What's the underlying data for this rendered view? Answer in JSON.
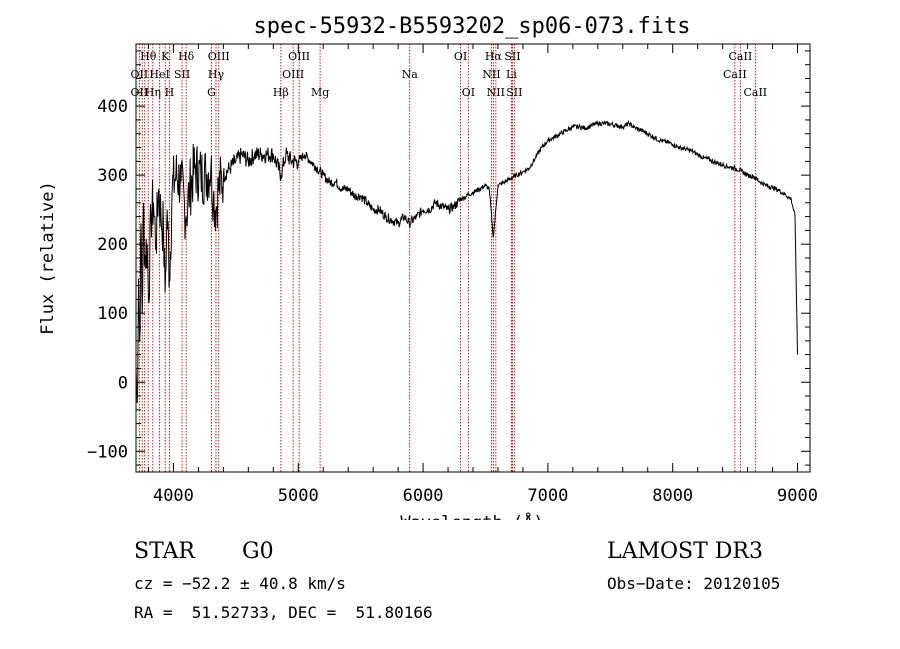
{
  "chart_data": {
    "type": "line",
    "title": "spec-55932-B5593202_sp06-073.fits",
    "xlabel": "Wavelength (Å)",
    "ylabel": "Flux (relative)",
    "xlim": [
      3700,
      9100
    ],
    "ylim": [
      -130,
      490
    ],
    "xticks": [
      4000,
      5000,
      6000,
      7000,
      8000,
      9000
    ],
    "yticks": [
      -100,
      0,
      100,
      200,
      300,
      400
    ],
    "series": [
      {
        "name": "spectrum",
        "x": [
          3700,
          3710,
          3720,
          3730,
          3740,
          3750,
          3760,
          3770,
          3790,
          3800,
          3820,
          3840,
          3860,
          3880,
          3900,
          3920,
          3933,
          3950,
          3968,
          3990,
          4020,
          4060,
          4101,
          4130,
          4170,
          4220,
          4260,
          4300,
          4320,
          4340,
          4360,
          4400,
          4450,
          4500,
          4550,
          4600,
          4650,
          4700,
          4750,
          4800,
          4861,
          4900,
          4950,
          5000,
          5050,
          5100,
          5150,
          5200,
          5250,
          5300,
          5350,
          5400,
          5450,
          5500,
          5550,
          5600,
          5650,
          5700,
          5750,
          5800,
          5850,
          5890,
          5950,
          6000,
          6050,
          6100,
          6150,
          6200,
          6250,
          6300,
          6350,
          6400,
          6450,
          6500,
          6530,
          6563,
          6600,
          6650,
          6700,
          6750,
          6800,
          6850,
          6900,
          6950,
          7000,
          7050,
          7100,
          7150,
          7200,
          7250,
          7300,
          7350,
          7400,
          7450,
          7500,
          7550,
          7600,
          7650,
          7700,
          7750,
          7800,
          7850,
          7900,
          7950,
          8000,
          8050,
          8100,
          8150,
          8200,
          8250,
          8300,
          8350,
          8400,
          8450,
          8500,
          8550,
          8600,
          8650,
          8700,
          8750,
          8800,
          8850,
          8900,
          8950,
          8980,
          9000
        ],
        "y": [
          20,
          -30,
          150,
          60,
          230,
          100,
          260,
          180,
          200,
          120,
          240,
          260,
          200,
          280,
          240,
          220,
          130,
          250,
          150,
          280,
          300,
          290,
          240,
          280,
          310,
          300,
          300,
          310,
          270,
          250,
          280,
          300,
          310,
          320,
          330,
          320,
          330,
          330,
          330,
          330,
          300,
          330,
          320,
          320,
          330,
          320,
          310,
          300,
          290,
          290,
          280,
          280,
          270,
          270,
          260,
          250,
          250,
          240,
          235,
          230,
          240,
          230,
          240,
          250,
          250,
          260,
          255,
          250,
          255,
          265,
          270,
          275,
          280,
          285,
          280,
          210,
          285,
          290,
          295,
          300,
          305,
          310,
          325,
          340,
          350,
          355,
          360,
          365,
          370,
          370,
          368,
          372,
          375,
          375,
          374,
          372,
          370,
          375,
          368,
          365,
          360,
          355,
          350,
          348,
          345,
          340,
          338,
          335,
          330,
          325,
          322,
          318,
          315,
          312,
          310,
          306,
          300,
          298,
          290,
          285,
          282,
          278,
          272,
          265,
          240,
          40
        ]
      }
    ],
    "spectral_lines": [
      {
        "label": "Hθ",
        "wl": 3798,
        "row": 1
      },
      {
        "label": "K",
        "wl": 3934,
        "row": 1
      },
      {
        "label": "Hδ",
        "wl": 4102,
        "row": 1
      },
      {
        "label": "OII",
        "wl": 3727,
        "row": 2
      },
      {
        "label": "HeI",
        "wl": 3889,
        "row": 2
      },
      {
        "label": "SII",
        "wl": 4069,
        "row": 2
      },
      {
        "label": "OIII",
        "wl": 4363,
        "row": 1
      },
      {
        "label": "Hγ",
        "wl": 4341,
        "row": 2
      },
      {
        "label": "OII",
        "wl": 3727,
        "row": 3
      },
      {
        "label": "Hη",
        "wl": 3835,
        "row": 3
      },
      {
        "label": "H",
        "wl": 3968,
        "row": 3
      },
      {
        "label": "G",
        "wl": 4305,
        "row": 3
      },
      {
        "label": "OIII",
        "wl": 5007,
        "row": 1
      },
      {
        "label": "OIII",
        "wl": 4959,
        "row": 2
      },
      {
        "label": "Hβ",
        "wl": 4861,
        "row": 3
      },
      {
        "label": "Mg",
        "wl": 5175,
        "row": 3
      },
      {
        "label": "Na",
        "wl": 5893,
        "row": 2
      },
      {
        "label": "OI",
        "wl": 6300,
        "row": 1
      },
      {
        "label": "OI",
        "wl": 6363,
        "row": 3
      },
      {
        "label": "Hα",
        "wl": 6563,
        "row": 1
      },
      {
        "label": "SII",
        "wl": 6716,
        "row": 1
      },
      {
        "label": "NII",
        "wl": 6548,
        "row": 2
      },
      {
        "label": "Li",
        "wl": 6708,
        "row": 2
      },
      {
        "label": "NII",
        "wl": 6583,
        "row": 3
      },
      {
        "label": "SII",
        "wl": 6731,
        "row": 3
      },
      {
        "label": "CaII",
        "wl": 8542,
        "row": 1
      },
      {
        "label": "CaII",
        "wl": 8498,
        "row": 2
      },
      {
        "label": "CaII",
        "wl": 8662,
        "row": 3
      }
    ],
    "marker_lines_wl": [
      3727,
      3750,
      3770,
      3798,
      3835,
      3889,
      3934,
      3968,
      4069,
      4102,
      4305,
      4341,
      4363,
      4861,
      4959,
      5007,
      5175,
      5893,
      6300,
      6363,
      6548,
      6563,
      6583,
      6708,
      6716,
      6731,
      8498,
      8542,
      8662
    ]
  },
  "info": {
    "class": "STAR",
    "subclass": "G0",
    "survey": "LAMOST DR3",
    "cz": "cz = −52.2 ± 40.8 km/s",
    "obs_date": "Obs−Date: 20120105",
    "radec": "RA =  51.52733, DEC =  51.80166"
  },
  "colors": {
    "marker": "#cc0000",
    "spectrum": "#000000"
  }
}
